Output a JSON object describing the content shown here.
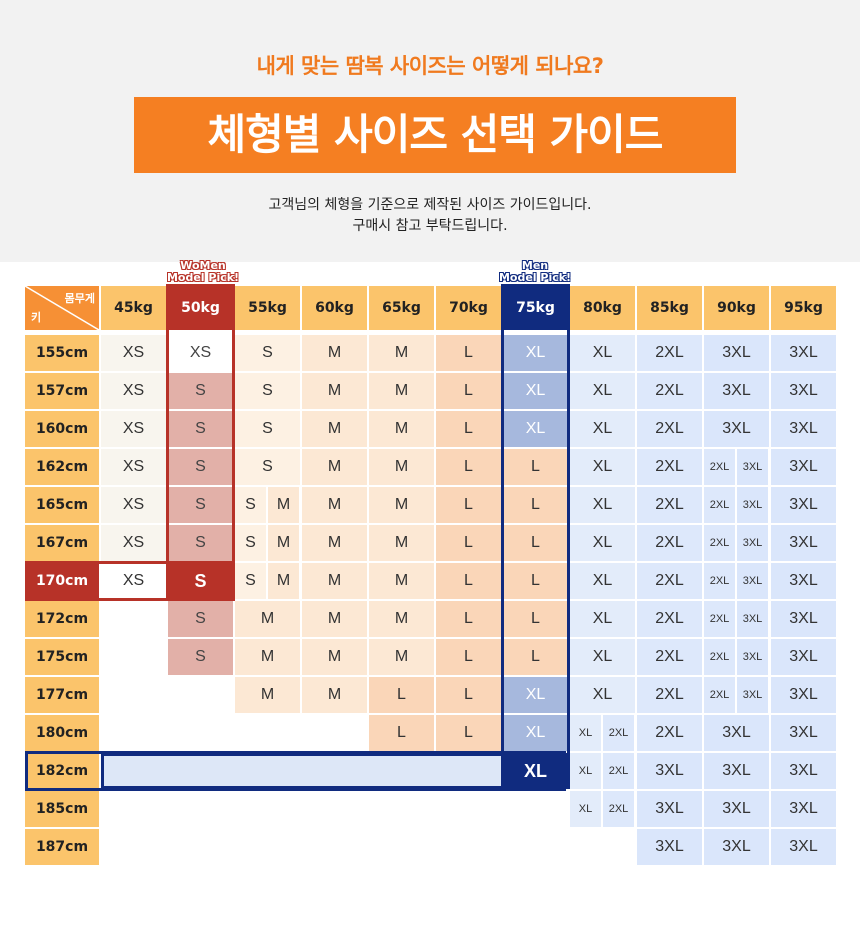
{
  "header": {
    "subtitle": "내게 맞는 땀복 사이즈는 어떻게 되나요?",
    "title": "체형별 사이즈 선택 가이드",
    "description_line1": "고객님의 체형을 기준으로 제작된 사이즈 가이드입니다.",
    "description_line2": "구매시 참고 부탁드립니다."
  },
  "table": {
    "corner_weight": "몸무게",
    "corner_height": "키",
    "women_pick_line1": "WoMen",
    "women_pick_line2": "Model Pick!",
    "men_pick_line1": "Men",
    "men_pick_line2": "Model Pick!",
    "weights": [
      "45kg",
      "50kg",
      "55kg",
      "60kg",
      "65kg",
      "70kg",
      "75kg",
      "80kg",
      "85kg",
      "90kg",
      "95kg"
    ],
    "heights": [
      "155cm",
      "157cm",
      "160cm",
      "162cm",
      "165cm",
      "167cm",
      "170cm",
      "172cm",
      "175cm",
      "177cm",
      "180cm",
      "182cm",
      "185cm",
      "187cm"
    ],
    "rows": [
      [
        [
          "XS"
        ],
        [
          "XS"
        ],
        [
          "S"
        ],
        [
          "M"
        ],
        [
          "M"
        ],
        [
          "L"
        ],
        [
          "XL"
        ],
        [
          "XL"
        ],
        [
          "2XL"
        ],
        [
          "3XL"
        ],
        [
          "3XL"
        ]
      ],
      [
        [
          "XS"
        ],
        [
          "S"
        ],
        [
          "S"
        ],
        [
          "M"
        ],
        [
          "M"
        ],
        [
          "L"
        ],
        [
          "XL"
        ],
        [
          "XL"
        ],
        [
          "2XL"
        ],
        [
          "3XL"
        ],
        [
          "3XL"
        ]
      ],
      [
        [
          "XS"
        ],
        [
          "S"
        ],
        [
          "S"
        ],
        [
          "M"
        ],
        [
          "M"
        ],
        [
          "L"
        ],
        [
          "XL"
        ],
        [
          "XL"
        ],
        [
          "2XL"
        ],
        [
          "3XL"
        ],
        [
          "3XL"
        ]
      ],
      [
        [
          "XS"
        ],
        [
          "S"
        ],
        [
          "S"
        ],
        [
          "M"
        ],
        [
          "M"
        ],
        [
          "L"
        ],
        [
          "L"
        ],
        [
          "XL"
        ],
        [
          "2XL"
        ],
        [
          "2XL",
          "3XL"
        ],
        [
          "3XL"
        ]
      ],
      [
        [
          "XS"
        ],
        [
          "S"
        ],
        [
          "S",
          "M"
        ],
        [
          "M"
        ],
        [
          "M"
        ],
        [
          "L"
        ],
        [
          "L"
        ],
        [
          "XL"
        ],
        [
          "2XL"
        ],
        [
          "2XL",
          "3XL"
        ],
        [
          "3XL"
        ]
      ],
      [
        [
          "XS"
        ],
        [
          "S"
        ],
        [
          "S",
          "M"
        ],
        [
          "M"
        ],
        [
          "M"
        ],
        [
          "L"
        ],
        [
          "L"
        ],
        [
          "XL"
        ],
        [
          "2XL"
        ],
        [
          "2XL",
          "3XL"
        ],
        [
          "3XL"
        ]
      ],
      [
        [
          "XS"
        ],
        [
          "S"
        ],
        [
          "S",
          "M"
        ],
        [
          "M"
        ],
        [
          "M"
        ],
        [
          "L"
        ],
        [
          "L"
        ],
        [
          "XL"
        ],
        [
          "2XL"
        ],
        [
          "2XL",
          "3XL"
        ],
        [
          "3XL"
        ]
      ],
      [
        [],
        [
          "S"
        ],
        [
          "M"
        ],
        [
          "M"
        ],
        [
          "M"
        ],
        [
          "L"
        ],
        [
          "L"
        ],
        [
          "XL"
        ],
        [
          "2XL"
        ],
        [
          "2XL",
          "3XL"
        ],
        [
          "3XL"
        ]
      ],
      [
        [],
        [
          "S"
        ],
        [
          "M"
        ],
        [
          "M"
        ],
        [
          "M"
        ],
        [
          "L"
        ],
        [
          "L"
        ],
        [
          "XL"
        ],
        [
          "2XL"
        ],
        [
          "2XL",
          "3XL"
        ],
        [
          "3XL"
        ]
      ],
      [
        [],
        [],
        [
          "M"
        ],
        [
          "M"
        ],
        [
          "L"
        ],
        [
          "L"
        ],
        [
          "XL"
        ],
        [
          "XL"
        ],
        [
          "2XL"
        ],
        [
          "2XL",
          "3XL"
        ],
        [
          "3XL"
        ]
      ],
      [
        [],
        [],
        [],
        [],
        [
          "L"
        ],
        [
          "L"
        ],
        [
          "XL"
        ],
        [
          "XL",
          "2XL"
        ],
        [
          "2XL"
        ],
        [
          "3XL"
        ],
        [
          "3XL"
        ]
      ],
      [
        [],
        [],
        [],
        [],
        [],
        [],
        [
          "XL"
        ],
        [
          "XL",
          "2XL"
        ],
        [
          "3XL"
        ],
        [
          "3XL"
        ],
        [
          "3XL"
        ]
      ],
      [
        [],
        [],
        [],
        [],
        [],
        [],
        [],
        [
          "XL",
          "2XL"
        ],
        [
          "3XL"
        ],
        [
          "3XL"
        ],
        [
          "3XL"
        ]
      ],
      [
        [],
        [],
        [],
        [],
        [],
        [],
        [],
        [],
        [
          "3XL"
        ],
        [
          "3XL"
        ],
        [
          "3XL"
        ]
      ]
    ]
  },
  "colors": {
    "accent": "#f57f22",
    "women": "#b73228",
    "men": "#102b7f",
    "header_bg": "#fbc46b"
  }
}
